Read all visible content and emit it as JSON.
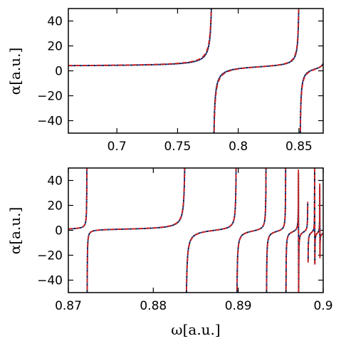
{
  "chart_data": [
    {
      "type": "line",
      "panel": "top",
      "xlabel": "",
      "ylabel": "α[a.u.]",
      "xlim": [
        0.66,
        0.87
      ],
      "ylim": [
        -50,
        50
      ],
      "xticks": [
        0.7,
        0.75,
        0.8,
        0.85
      ],
      "xtick_labels": [
        "0.7",
        "0.75",
        "0.8",
        "0.85"
      ],
      "yticks": [
        -40,
        -20,
        0,
        20,
        40
      ],
      "ytick_labels": [
        "−40",
        "−20",
        "0",
        "20",
        "40"
      ],
      "poles": [
        0.779,
        0.8505,
        0.872
      ],
      "x_start": 0.66,
      "background_value": 3.5,
      "series": [
        {
          "style": "solid",
          "color": "#1f3f9f",
          "amplitude": 1.0
        },
        {
          "style": "dotted",
          "color": "#111111",
          "amplitude": 1.0
        },
        {
          "style": "dashed",
          "color": "#cc2222",
          "amplitude": 1.12
        }
      ]
    },
    {
      "type": "line",
      "panel": "bottom",
      "xlabel": "ω[a.u.]",
      "ylabel": "α[a.u.]",
      "xlim": [
        0.87,
        0.9
      ],
      "ylim": [
        -50,
        50
      ],
      "xticks": [
        0.87,
        0.88,
        0.89,
        0.9
      ],
      "xtick_labels": [
        "0.87",
        "0.88",
        "0.89",
        "0.9"
      ],
      "yticks": [
        -40,
        -20,
        0,
        20,
        40
      ],
      "ytick_labels": [
        "−40",
        "−20",
        "0",
        "20",
        "40"
      ],
      "poles": [
        0.8722,
        0.8838,
        0.8898,
        0.8933,
        0.8956,
        0.8971,
        0.8982,
        0.899,
        0.8996
      ],
      "x_start": 0.87,
      "background_value": 0,
      "series": [
        {
          "style": "solid",
          "color": "#1f3f9f",
          "amplitude": 1.0
        },
        {
          "style": "dotted",
          "color": "#111111",
          "amplitude": 1.0
        },
        {
          "style": "dashed",
          "color": "#cc2222",
          "amplitude": 1.06
        }
      ]
    }
  ]
}
